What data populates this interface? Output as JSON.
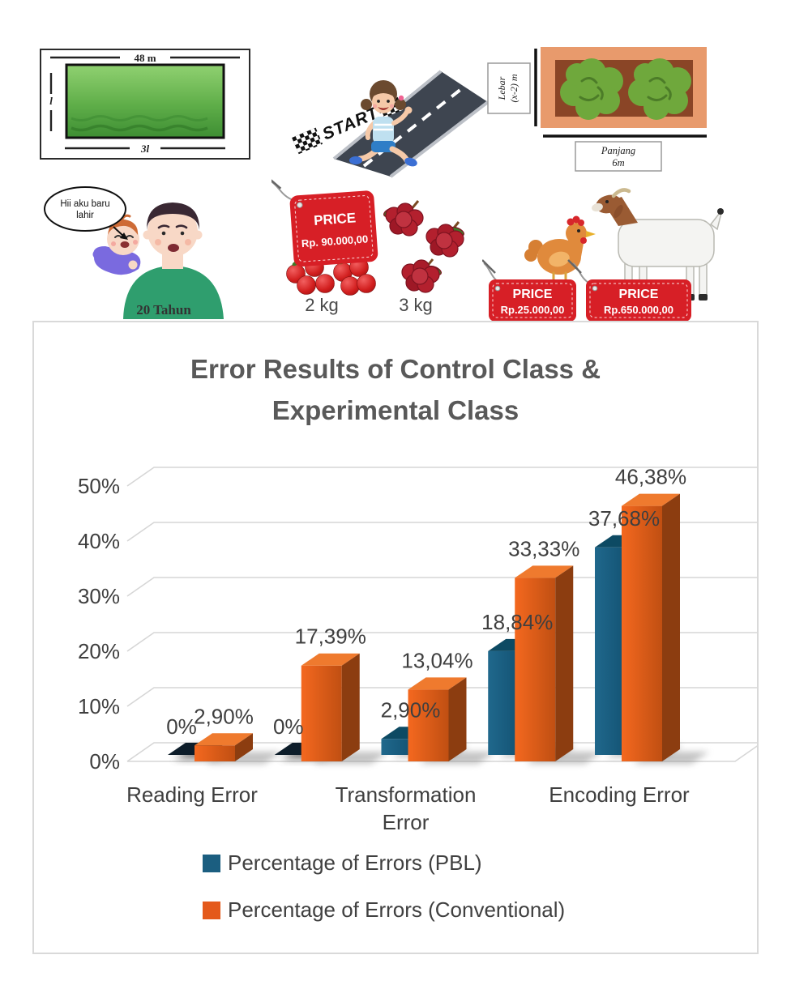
{
  "illustrations": {
    "field": {
      "top_label": "48 m",
      "left_label": "l",
      "bottom_label": "3l"
    },
    "runner": {
      "start_label": "START"
    },
    "garden": {
      "width_line1": "Lebar",
      "width_line2": "(x-2) m",
      "length_line1": "Panjang",
      "length_line2": "6m"
    },
    "family": {
      "bubble_line1": "Hii aku baru",
      "bubble_line2": "lahir",
      "caption": "20 Tahun"
    },
    "fruits": {
      "tag_title": "PRICE",
      "tag_price": "Rp. 90.000,00",
      "apples_label": "2 kg",
      "rambutan_label": "3 kg"
    },
    "animals": {
      "chicken_tag_title": "PRICE",
      "chicken_tag_price": "Rp.25.000,00",
      "goat_tag_title": "PRICE",
      "goat_tag_price": "Rp.650.000,00"
    }
  },
  "chart": {
    "title_line1": "Error Results of Control Class &",
    "title_line2": "Experimental Class"
  },
  "chart_data": {
    "type": "bar",
    "style": "3d-clustered",
    "title": "Error Results of Control Class & Experimental Class",
    "categories": [
      "Reading Error",
      "",
      "Transformation Error",
      "",
      "Encoding Error"
    ],
    "series": [
      {
        "name": "Percentage of Errors (PBL)",
        "color": "#1B5E80",
        "values": [
          0,
          0,
          2.9,
          18.84,
          37.68
        ],
        "labels": [
          "0%",
          "0%",
          "2,90%",
          "18,84%",
          "37,68%"
        ]
      },
      {
        "name": "Percentage of Errors (Conventional)",
        "color": "#E4591B",
        "values": [
          2.9,
          17.39,
          13.04,
          33.33,
          46.38
        ],
        "labels": [
          "2,90%",
          "17,39%",
          "13,04%",
          "33,33%",
          "46,38%"
        ]
      }
    ],
    "xlabel": "",
    "ylabel": "",
    "ylim": [
      0,
      50
    ],
    "ytick_labels": [
      "0%",
      "10%",
      "20%",
      "30%",
      "40%",
      "50%"
    ],
    "grid": true,
    "legend_position": "bottom-left"
  }
}
